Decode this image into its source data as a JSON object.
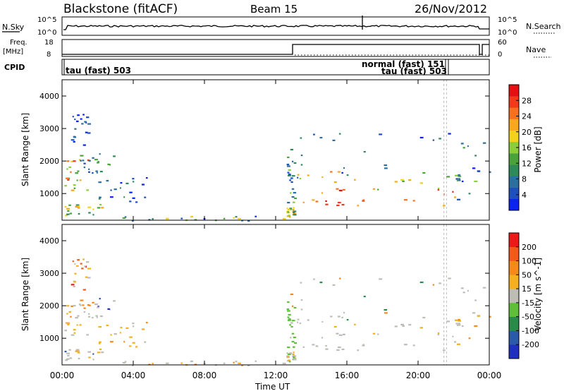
{
  "header": {
    "station": "Blackstone (fitACF)",
    "beam": "Beam 15",
    "date": "26/Nov/2012"
  },
  "top_labels": {
    "nsky": "N.Sky",
    "nsky_ticks": [
      "10^5",
      "10^0"
    ],
    "nsearch": "N.Search",
    "nsearch_ticks": [
      "10^5",
      "10^0"
    ],
    "freq": "Freq.",
    "freq_unit": "[MHz]",
    "freq_ticks": [
      "18",
      "8"
    ],
    "nave": "Nave",
    "nave_ticks": [
      "60",
      "0"
    ],
    "cpid": "CPID"
  },
  "cpid_labels": [
    "tau (fast) 503",
    "normal (fast) 151",
    "tau (fast) 503"
  ],
  "chart_data": [
    {
      "type": "heatmap",
      "name": "Power",
      "ylabel": "Slant Range [km]",
      "yticks": [
        1000,
        2000,
        3000,
        4000
      ],
      "xlim": [
        0,
        24
      ],
      "ylim": [
        180,
        4500
      ],
      "colorbar": {
        "label": "Power [dB]",
        "ticks": [
          "4",
          "8",
          "12",
          "16",
          "20",
          "24",
          "28"
        ],
        "range": [
          0,
          32
        ],
        "colors": [
          "#0a22f2",
          "#1f4fb8",
          "#2a6fa0",
          "#2f8a5a",
          "#4aa33a",
          "#8ccd3a",
          "#f2d21a",
          "#f8a81c",
          "#f6701e",
          "#f23a1a",
          "#e60f12"
        ]
      }
    },
    {
      "type": "heatmap",
      "name": "Velocity",
      "ylabel": "Slant Range [km]",
      "yticks": [
        1000,
        2000,
        3000,
        4000
      ],
      "xlim": [
        0,
        24
      ],
      "ylim": [
        180,
        4500
      ],
      "colorbar": {
        "label": "Velocity [m s^-1]",
        "ticks": [
          "200",
          "100",
          "50",
          "15",
          "-15",
          "-50",
          "-100",
          "-200"
        ],
        "colors": [
          "#1f2fbf",
          "#2a5aa8",
          "#2a8a4a",
          "#5fbf3a",
          "#bdbdb6",
          "#f5b020",
          "#f58a1a",
          "#f35a1a",
          "#ec1a16"
        ]
      }
    }
  ],
  "xaxis": {
    "label": "Time UT",
    "ticks": [
      "00:00",
      "04:00",
      "08:00",
      "12:00",
      "16:00",
      "20:00",
      "00:00"
    ]
  }
}
